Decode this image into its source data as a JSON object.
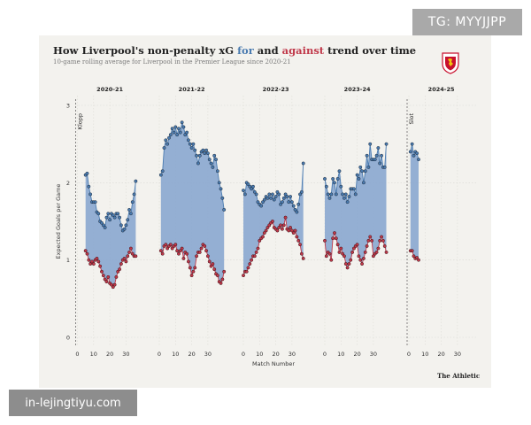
{
  "header": {
    "title_pre": "How Liverpool's non-penalty xG ",
    "title_for": "for",
    "title_mid": " and ",
    "title_against": "against",
    "title_post": " trend over time",
    "subtitle": "10-game rolling average for Liverpool in the Premier League since 2020-21"
  },
  "brand": "The Athletic",
  "watermarks": {
    "top": "TG: MYYJJPP",
    "bottom": "in-lejingtiyu.com"
  },
  "colors": {
    "for": "#4a7bb0",
    "against": "#c0394a",
    "fill": "#8aa7cf",
    "panel": "#f3f2ee"
  },
  "icons": {
    "crest": "liverpool-crest-icon"
  },
  "chart_data": {
    "type": "area",
    "title": "How Liverpool's non-penalty xG for and against trend over time",
    "subtitle": "10-game rolling average for Liverpool in the Premier League since 2020-21",
    "xlabel": "Match Number",
    "ylabel": "Expected Goals per Game",
    "ylim": [
      0,
      3
    ],
    "yticks": [
      "0",
      "1",
      "2",
      "3"
    ],
    "xticks": [
      "0",
      "10",
      "20",
      "30"
    ],
    "grid": true,
    "annotations": [
      {
        "text": "Klopp",
        "panel": "2020-21",
        "x": 0
      },
      {
        "text": "Slot",
        "panel": "2024-25",
        "x": 0
      }
    ],
    "panels": [
      {
        "season": "2020-21",
        "x_start": 5,
        "for": [
          2.1,
          2.12,
          1.95,
          1.85,
          1.75,
          1.75,
          1.75,
          1.62,
          1.6,
          1.5,
          1.48,
          1.45,
          1.42,
          1.55,
          1.6,
          1.52,
          1.6,
          1.58,
          1.55,
          1.6,
          1.6,
          1.55,
          1.45,
          1.38,
          1.4,
          1.45,
          1.52,
          1.65,
          1.6,
          1.75,
          1.85,
          2.02
        ],
        "against": [
          1.12,
          1.08,
          1.0,
          0.95,
          0.98,
          0.95,
          1.0,
          1.02,
          0.98,
          0.92,
          0.85,
          0.8,
          0.75,
          0.72,
          0.78,
          0.7,
          0.68,
          0.65,
          0.68,
          0.78,
          0.85,
          0.88,
          0.95,
          1.0,
          1.02,
          0.98,
          1.05,
          1.1,
          1.15,
          1.08,
          1.05,
          1.05
        ]
      },
      {
        "season": "2021-22",
        "x_start": 1,
        "for": [
          2.1,
          2.15,
          2.45,
          2.55,
          2.5,
          2.58,
          2.62,
          2.7,
          2.65,
          2.72,
          2.62,
          2.7,
          2.65,
          2.78,
          2.72,
          2.62,
          2.65,
          2.55,
          2.5,
          2.45,
          2.5,
          2.42,
          2.35,
          2.25,
          2.35,
          2.4,
          2.42,
          2.38,
          2.42,
          2.38,
          2.3,
          2.25,
          2.2,
          2.35,
          2.3,
          2.15,
          2.0,
          1.92,
          1.8,
          1.65
        ],
        "against": [
          1.12,
          1.08,
          1.18,
          1.2,
          1.15,
          1.18,
          1.2,
          1.15,
          1.18,
          1.2,
          1.12,
          1.08,
          1.12,
          1.15,
          1.02,
          1.1,
          1.08,
          0.98,
          0.9,
          0.8,
          0.85,
          0.9,
          1.05,
          1.1,
          1.1,
          1.15,
          1.2,
          1.18,
          1.12,
          1.05,
          0.98,
          0.92,
          0.95,
          0.88,
          0.82,
          0.8,
          0.72,
          0.7,
          0.75,
          0.85
        ]
      },
      {
        "season": "2022-23",
        "x_start": 0,
        "for": [
          1.9,
          1.85,
          2.0,
          1.98,
          1.95,
          1.92,
          1.95,
          1.88,
          1.85,
          1.75,
          1.72,
          1.7,
          1.75,
          1.78,
          1.82,
          1.8,
          1.85,
          1.8,
          1.85,
          1.78,
          1.82,
          1.88,
          1.85,
          1.72,
          1.75,
          1.8,
          1.85,
          1.82,
          1.75,
          1.82,
          1.75,
          1.7,
          1.65,
          1.62,
          1.72,
          1.85,
          1.88,
          2.25
        ],
        "against": [
          0.8,
          0.85,
          0.85,
          0.9,
          0.95,
          1.0,
          1.05,
          1.05,
          1.1,
          1.15,
          1.25,
          1.28,
          1.3,
          1.35,
          1.38,
          1.42,
          1.45,
          1.48,
          1.5,
          1.42,
          1.4,
          1.38,
          1.42,
          1.45,
          1.4,
          1.45,
          1.55,
          1.4,
          1.38,
          1.42,
          1.38,
          1.35,
          1.38,
          1.3,
          1.25,
          1.2,
          1.08,
          1.02
        ]
      },
      {
        "season": "2023-24",
        "x_start": 0,
        "for": [
          2.05,
          1.95,
          1.85,
          1.8,
          1.85,
          2.05,
          2.0,
          1.85,
          2.05,
          2.15,
          1.95,
          1.85,
          1.8,
          1.85,
          1.75,
          1.82,
          1.92,
          1.92,
          1.92,
          1.85,
          2.1,
          2.05,
          2.2,
          2.15,
          2.0,
          2.15,
          2.35,
          2.2,
          2.5,
          2.3,
          2.3,
          2.3,
          2.35,
          2.45,
          2.25,
          2.35,
          2.2,
          2.2,
          2.5
        ],
        "against": [
          1.25,
          1.05,
          1.1,
          1.08,
          1.0,
          1.28,
          1.35,
          1.28,
          1.2,
          1.1,
          1.15,
          1.08,
          1.05,
          0.95,
          0.9,
          0.95,
          1.0,
          1.1,
          1.15,
          1.18,
          1.2,
          1.05,
          1.0,
          0.95,
          1.02,
          1.1,
          1.18,
          1.25,
          1.3,
          1.25,
          1.05,
          1.08,
          1.1,
          1.15,
          1.25,
          1.3,
          1.25,
          1.18,
          1.1
        ]
      },
      {
        "season": "2024-25",
        "x_start": 1,
        "for": [
          2.4,
          2.5,
          2.35,
          2.4,
          2.38,
          2.3
        ],
        "against": [
          1.12,
          1.12,
          1.05,
          1.02,
          1.03,
          1.0
        ]
      }
    ]
  }
}
